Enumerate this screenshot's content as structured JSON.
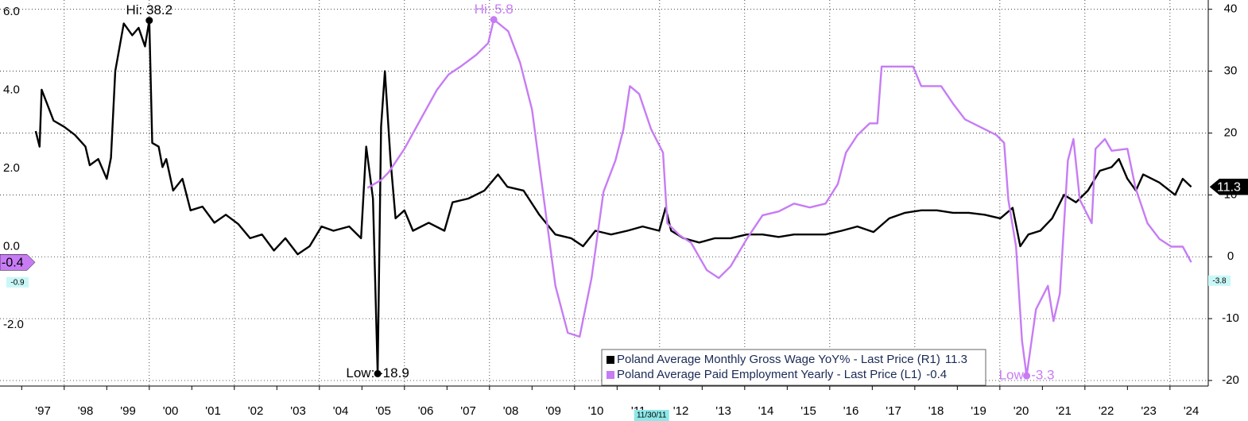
{
  "chart_data": {
    "type": "line",
    "xlim": [
      1996.49,
      2024.9
    ],
    "xticks": [
      {
        "value": 1997,
        "label": "'97"
      },
      {
        "value": 1998,
        "label": "'98"
      },
      {
        "value": 1999,
        "label": "'99"
      },
      {
        "value": 2000,
        "label": "'00"
      },
      {
        "value": 2001,
        "label": "'01"
      },
      {
        "value": 2002,
        "label": "'02"
      },
      {
        "value": 2003,
        "label": "'03"
      },
      {
        "value": 2004,
        "label": "'04"
      },
      {
        "value": 2005,
        "label": "'05"
      },
      {
        "value": 2006,
        "label": "'06"
      },
      {
        "value": 2007,
        "label": "'07"
      },
      {
        "value": 2008,
        "label": "'08"
      },
      {
        "value": 2009,
        "label": "'09"
      },
      {
        "value": 2010,
        "label": "'10"
      },
      {
        "value": 2011,
        "label": "'11"
      },
      {
        "value": 2012,
        "label": "'12"
      },
      {
        "value": 2013,
        "label": "'13"
      },
      {
        "value": 2014,
        "label": "'14"
      },
      {
        "value": 2015,
        "label": "'15"
      },
      {
        "value": 2016,
        "label": "'16"
      },
      {
        "value": 2017,
        "label": "'17"
      },
      {
        "value": 2018,
        "label": "'18"
      },
      {
        "value": 2019,
        "label": "'19"
      },
      {
        "value": 2020,
        "label": "'20"
      },
      {
        "value": 2021,
        "label": "'21"
      },
      {
        "value": 2022,
        "label": "'22"
      },
      {
        "value": 2023,
        "label": "'23"
      },
      {
        "value": 2024,
        "label": "'24"
      }
    ],
    "ylim": [
      -3.56,
      6.3
    ],
    "yticks": [
      {
        "value": 6,
        "label": "6.0"
      },
      {
        "value": 4,
        "label": "4.0"
      },
      {
        "value": 2,
        "label": "2.0"
      },
      {
        "value": 0,
        "label": "0.0"
      },
      {
        "value": -2,
        "label": "-2.0"
      }
    ],
    "y2lim": [
      -20.9,
      41.5
    ],
    "y2ticks": [
      40,
      30,
      20,
      10,
      0,
      -10,
      -20
    ],
    "grid": true,
    "date_marker": "11/30/11",
    "markers": [
      {
        "value": -0.9,
        "axis": "y"
      },
      {
        "value": -3.8,
        "axis": "y2"
      }
    ],
    "series": [
      {
        "name": "Poland Average Monthly Gross Wage YoY% - Last Price (R1)",
        "color": "#000000",
        "axis": "y2",
        "hi_label": "Hi: 38.2",
        "low_label": "Low: -18.9",
        "x": [
          1997.33,
          1997.42,
          1997.47,
          1997.75,
          1998.0,
          1998.25,
          1998.5,
          1998.6,
          1998.8,
          1999.0,
          1999.1,
          1999.2,
          1999.4,
          1999.6,
          1999.75,
          1999.9,
          2000.0,
          2000.07,
          2000.22,
          2000.31,
          2000.4,
          2000.56,
          2000.78,
          2000.97,
          2001.25,
          2001.53,
          2001.8,
          2002.09,
          2002.37,
          2002.65,
          2002.93,
          2003.2,
          2003.49,
          2003.77,
          2004.05,
          2004.33,
          2004.7,
          2004.98,
          2005.1,
          2005.26,
          2005.37,
          2005.45,
          2005.54,
          2005.67,
          2005.79,
          2006.0,
          2006.2,
          2006.57,
          2006.94,
          2007.13,
          2007.5,
          2007.88,
          2008.2,
          2008.42,
          2008.8,
          2009.17,
          2009.55,
          2009.92,
          2010.2,
          2010.49,
          2010.86,
          2011.24,
          2011.6,
          2011.99,
          2012.14,
          2012.27,
          2012.56,
          2012.93,
          2013.3,
          2013.67,
          2014.05,
          2014.42,
          2014.8,
          2015.16,
          2015.53,
          2015.9,
          2016.28,
          2016.65,
          2017.03,
          2017.4,
          2017.77,
          2018.15,
          2018.52,
          2018.9,
          2019.27,
          2019.64,
          2020.01,
          2020.3,
          2020.48,
          2020.67,
          2020.95,
          2021.23,
          2021.51,
          2021.79,
          2022.07,
          2022.35,
          2022.63,
          2022.8,
          2023.0,
          2023.2,
          2023.37,
          2023.75,
          2024.12,
          2024.3,
          2024.5
        ],
        "values": [
          20.3,
          17.8,
          27,
          22,
          21,
          19.7,
          17.8,
          14.8,
          15.8,
          12.6,
          16,
          30,
          37.7,
          35.8,
          37,
          34,
          38.2,
          18.4,
          17.8,
          14.5,
          15.8,
          10.7,
          12.6,
          7.5,
          8.1,
          5.5,
          6.8,
          5.3,
          3,
          3.6,
          1,
          3,
          0.4,
          1.7,
          4.9,
          4.2,
          4.9,
          3,
          17.8,
          9.4,
          -18.9,
          21,
          30,
          15.8,
          6.2,
          7.5,
          4.2,
          5.5,
          4.2,
          8.8,
          9.4,
          10.7,
          13.3,
          11.3,
          10.7,
          6.8,
          3.6,
          3,
          1.7,
          4.2,
          3.6,
          4.2,
          4.9,
          4.2,
          7.9,
          4.2,
          3,
          2.3,
          3,
          3,
          3.6,
          3.6,
          3.2,
          3.6,
          3.6,
          3.6,
          4.2,
          4.9,
          4,
          6.2,
          7.1,
          7.5,
          7.5,
          7.1,
          7.1,
          6.8,
          6.2,
          7.9,
          1.7,
          3.6,
          4.2,
          6.2,
          10,
          8.8,
          10.7,
          13.9,
          14.5,
          15.8,
          12.6,
          10.7,
          13.3,
          12,
          10,
          12.6,
          11.3
        ]
      },
      {
        "name": "Poland Average Paid Employment Yearly - Last Price (L1)",
        "color": "#c77cf4",
        "axis": "y",
        "hi_label": "Hi: 5.8",
        "low_label": "Low: -3.3",
        "x": [
          2005.13,
          2005.45,
          2005.63,
          2006.0,
          2006.38,
          2006.76,
          2007.04,
          2007.32,
          2007.69,
          2007.97,
          2008.1,
          2008.44,
          2008.72,
          2009.0,
          2009.28,
          2009.55,
          2009.84,
          2010.12,
          2010.4,
          2010.68,
          2010.96,
          2011.15,
          2011.3,
          2011.52,
          2011.8,
          2012.08,
          2012.18,
          2012.46,
          2012.74,
          2013.11,
          2013.39,
          2013.67,
          2014.05,
          2014.42,
          2014.8,
          2015.16,
          2015.53,
          2015.9,
          2016.19,
          2016.38,
          2016.65,
          2016.94,
          2017.12,
          2017.22,
          2017.59,
          2017.96,
          2018.15,
          2018.62,
          2018.9,
          2019.18,
          2019.55,
          2019.92,
          2020.1,
          2020.2,
          2020.38,
          2020.52,
          2020.63,
          2020.85,
          2021.13,
          2021.26,
          2021.41,
          2021.6,
          2021.73,
          2021.88,
          2022.16,
          2022.25,
          2022.47,
          2022.63,
          2023.0,
          2023.19,
          2023.47,
          2023.75,
          2024.03,
          2024.3,
          2024.5
        ],
        "values": [
          1.5,
          1.7,
          1.9,
          2.5,
          3.25,
          4.0,
          4.4,
          4.6,
          4.9,
          5.2,
          5.8,
          5.5,
          4.7,
          3.5,
          1.2,
          -1.0,
          -2.2,
          -2.3,
          -0.8,
          1.4,
          2.2,
          3.0,
          4.1,
          3.9,
          3.0,
          2.4,
          0.6,
          0.3,
          0.1,
          -0.6,
          -0.8,
          -0.5,
          0.2,
          0.8,
          0.9,
          1.1,
          1.0,
          1.1,
          1.6,
          2.4,
          2.85,
          3.15,
          3.15,
          4.6,
          4.6,
          4.6,
          4.1,
          4.1,
          3.65,
          3.25,
          3.05,
          2.85,
          2.65,
          1.2,
          0.0,
          -2.4,
          -3.3,
          -1.6,
          -1.0,
          -1.9,
          -1.2,
          2.2,
          2.75,
          1.2,
          0.6,
          2.5,
          2.75,
          2.45,
          2.5,
          1.5,
          0.6,
          0.2,
          0.0,
          0.0,
          -0.4
        ]
      }
    ]
  }
}
